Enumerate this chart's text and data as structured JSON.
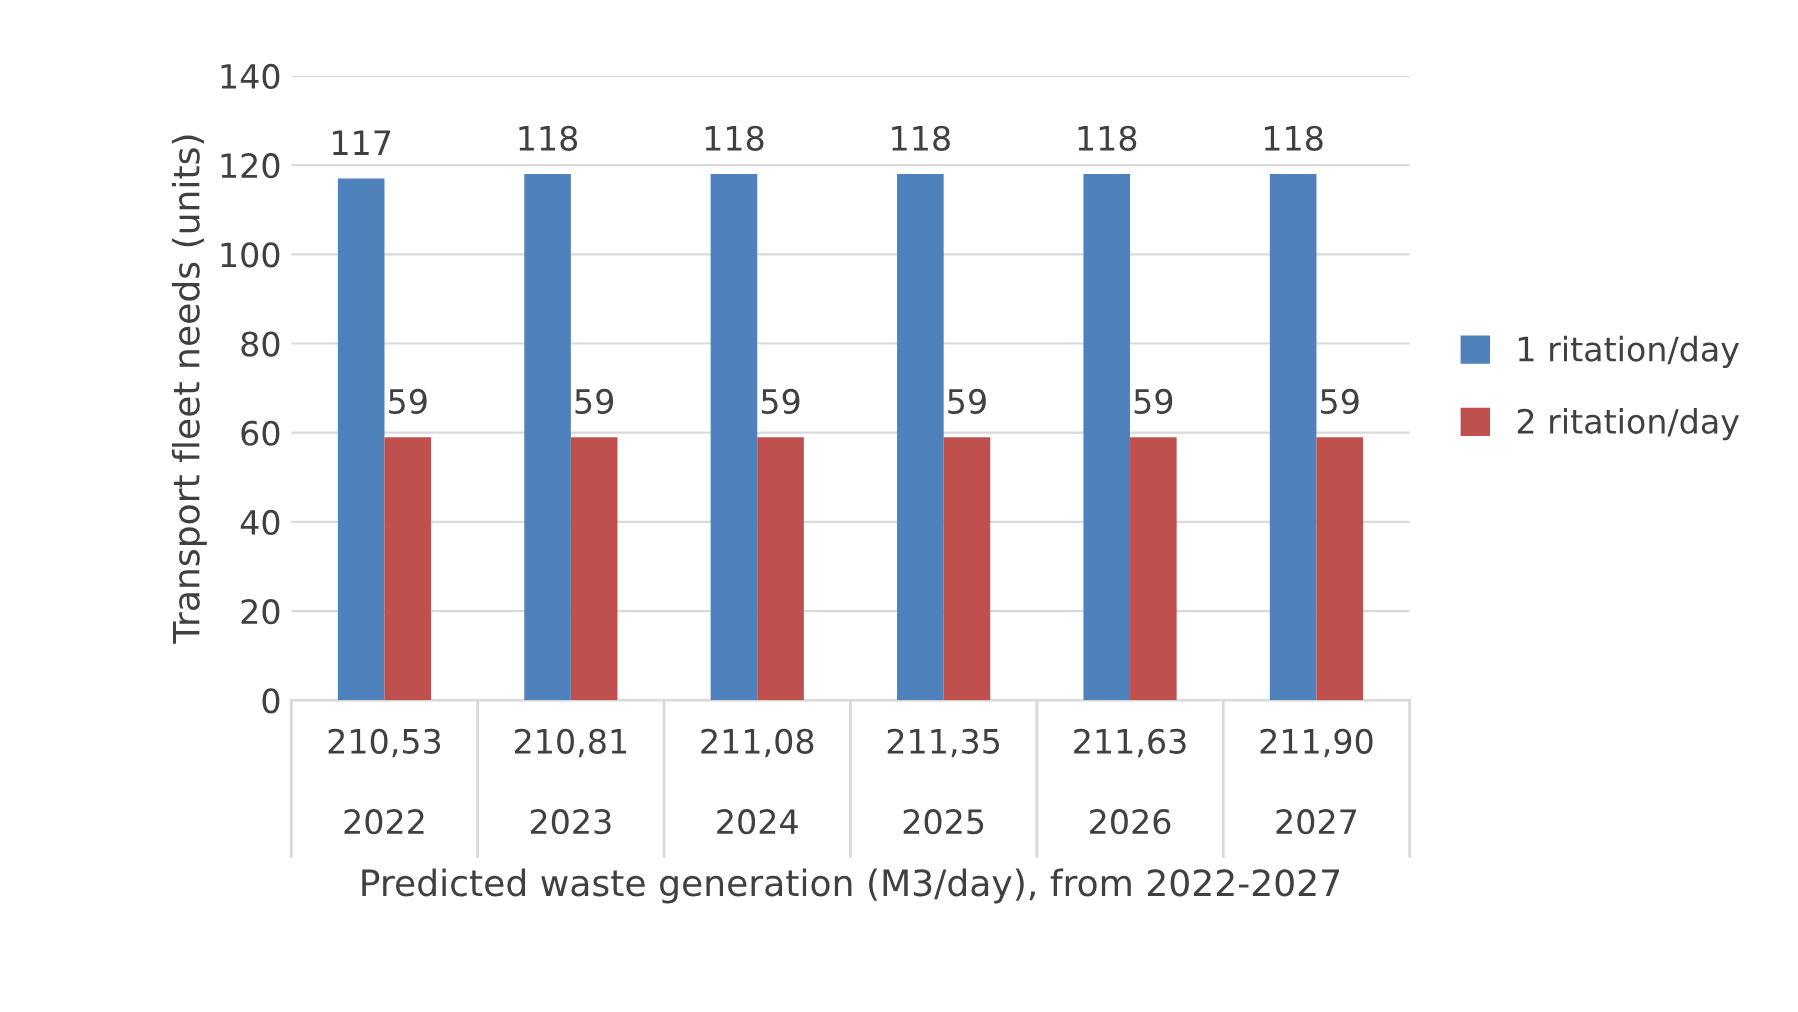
{
  "chart_data": {
    "type": "bar",
    "xlabel": "Predicted waste generation (M3/day), from 2022-2027",
    "ylabel": "Transport fleet needs (units)",
    "categories": [
      "210,53\n2022",
      "210,81\n2023",
      "211,08\n2024",
      "211,35\n2025",
      "211,63\n2026",
      "211,90\n2027"
    ],
    "series": [
      {
        "name": "1 ritation/day",
        "color": "#4f81bd",
        "values": [
          117,
          118,
          118,
          118,
          118,
          118
        ]
      },
      {
        "name": "2 ritation/day",
        "color": "#c0504d",
        "values": [
          59,
          59,
          59,
          59,
          59,
          59
        ]
      }
    ],
    "ylim": [
      0,
      140
    ],
    "yticks": [
      0,
      20,
      40,
      60,
      80,
      100,
      120,
      140
    ],
    "grid": "y",
    "legend": "right",
    "data_labels": true
  }
}
